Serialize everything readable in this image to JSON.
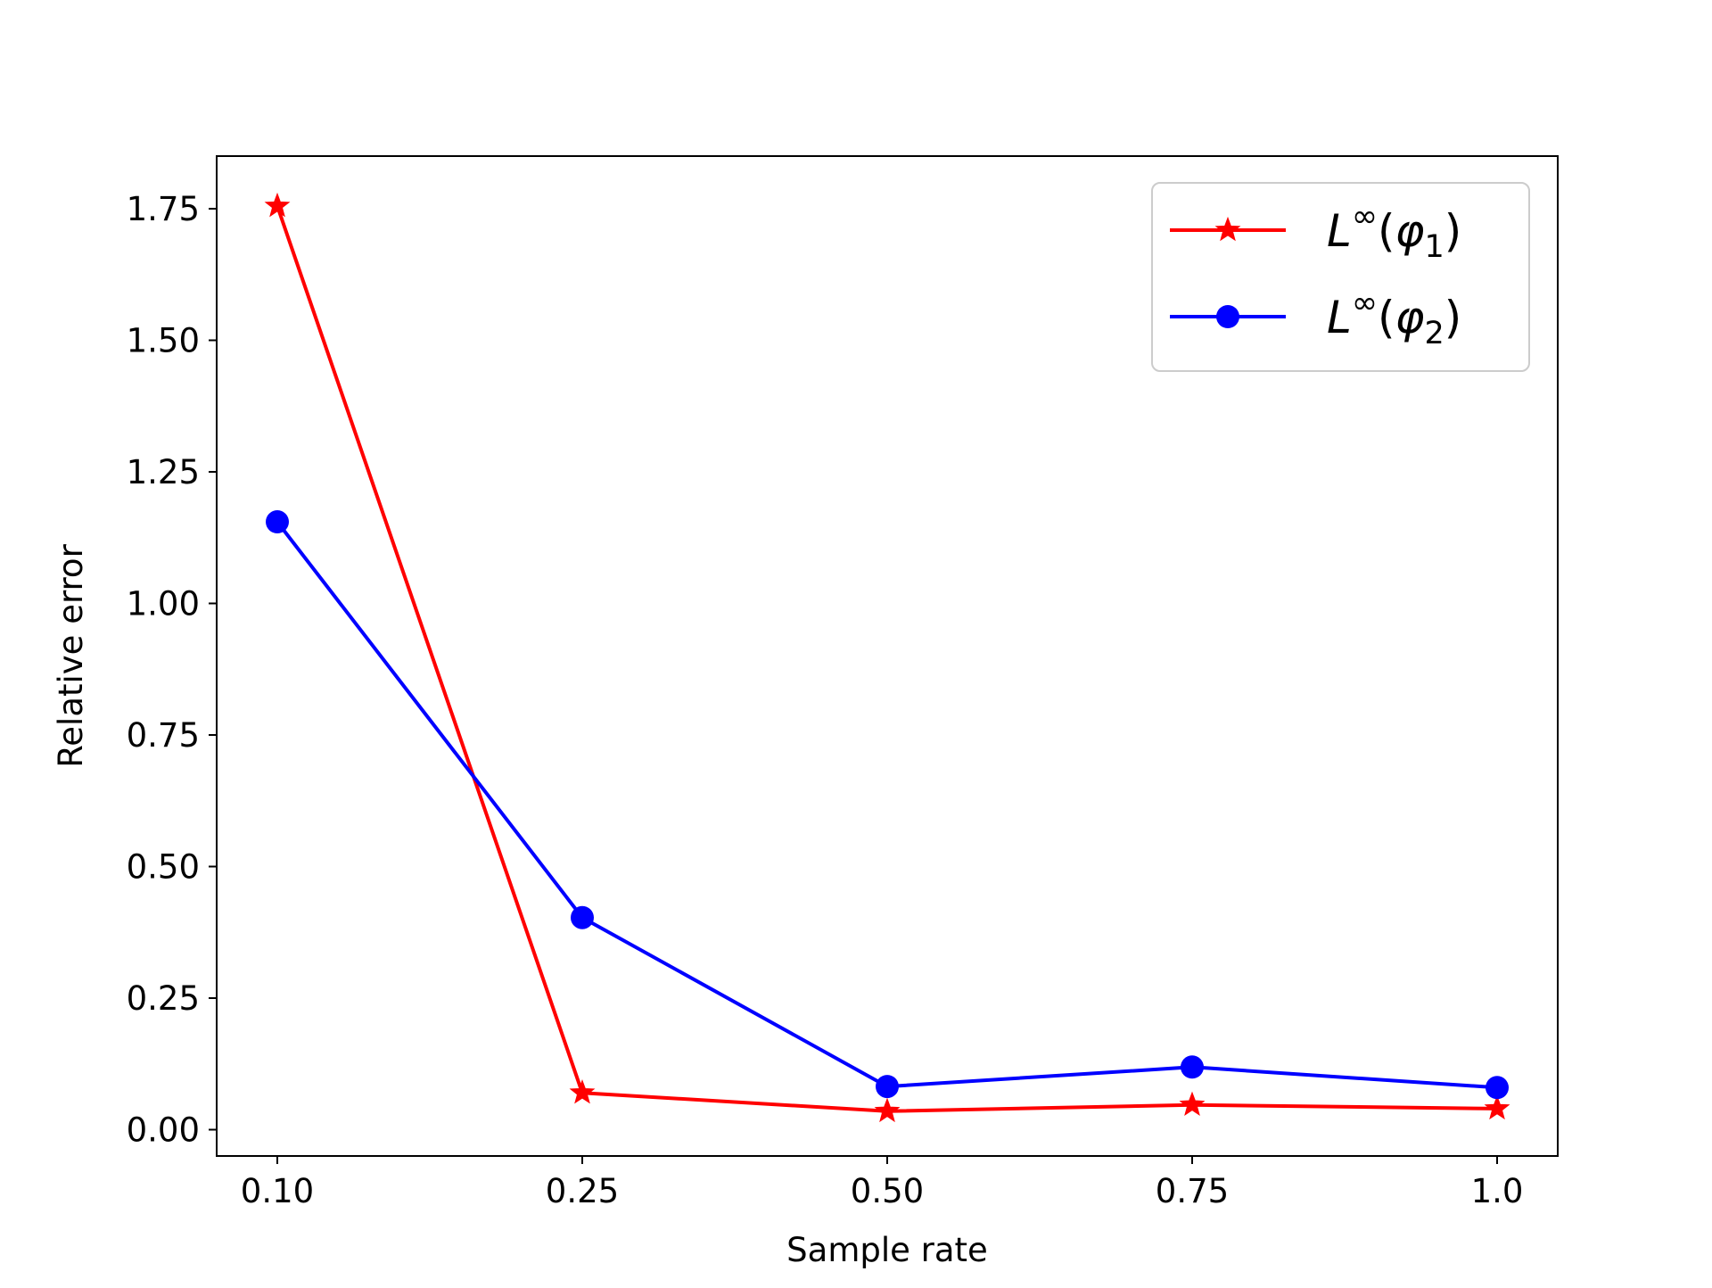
{
  "chart_data": {
    "type": "line",
    "title": "",
    "xlabel": "Sample rate",
    "ylabel": "Relative error",
    "x": [
      "0.10",
      "0.25",
      "0.50",
      "0.75",
      "1.0"
    ],
    "ylim": [
      -0.05,
      1.85
    ],
    "yticks": [
      "0.00",
      "0.25",
      "0.50",
      "0.75",
      "1.00",
      "1.25",
      "1.50",
      "1.75"
    ],
    "grid": false,
    "legend_position": "top-right",
    "series": [
      {
        "name": "L∞(φ1)",
        "legend": {
          "base": "L",
          "sup": "∞",
          "open": "(",
          "var": "φ",
          "sub": "1",
          "close": ")"
        },
        "values": [
          1.755,
          0.07,
          0.035,
          0.047,
          0.04
        ],
        "color": "#ff0000",
        "marker": "star"
      },
      {
        "name": "L∞(φ2)",
        "legend": {
          "base": "L",
          "sup": "∞",
          "open": "(",
          "var": "φ",
          "sub": "2",
          "close": ")"
        },
        "values": [
          1.155,
          0.403,
          0.082,
          0.119,
          0.08
        ],
        "color": "#0000ff",
        "marker": "circle"
      }
    ]
  }
}
